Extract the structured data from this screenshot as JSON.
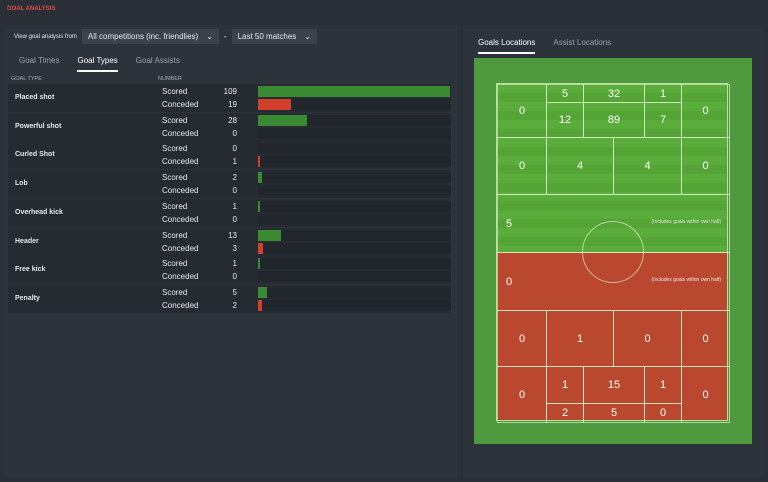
{
  "title": "GOAL ANALYSIS",
  "filters": {
    "label": "View goal analysis from",
    "competition": "All competitions (inc. friendlies)",
    "sep": "-",
    "range": "Last 50 matches"
  },
  "tabs": [
    "Goal Times",
    "Goal Types",
    "Goal Assists"
  ],
  "headers": {
    "type": "GOAL TYPE",
    "number": "NUMBER"
  },
  "rows": [
    {
      "name": "Placed shot",
      "scored": 109,
      "conceded": 19
    },
    {
      "name": "Powerful shot",
      "scored": 28,
      "conceded": 0
    },
    {
      "name": "Curled Shot",
      "scored": 0,
      "conceded": 1
    },
    {
      "name": "Lob",
      "scored": 2,
      "conceded": 0
    },
    {
      "name": "Overhead kick",
      "scored": 1,
      "conceded": 0
    },
    {
      "name": "Header",
      "scored": 13,
      "conceded": 3
    },
    {
      "name": "Free kick",
      "scored": 1,
      "conceded": 0
    },
    {
      "name": "Penalty",
      "scored": 5,
      "conceded": 2
    }
  ],
  "labels": {
    "scored": "Scored",
    "conceded": "Conceded"
  },
  "right_tabs": [
    "Goals Locations",
    "Assist Locations"
  ],
  "colors": {
    "scored": "#3a8a34",
    "conceded": "#d2402c"
  },
  "note": "(Includes goals within own half)",
  "pitch": {
    "att": [
      "0",
      "5",
      "32",
      "1",
      "0",
      "12",
      "89",
      "7",
      "0",
      "4",
      "4",
      "0",
      "5"
    ],
    "def": [
      "0",
      "0",
      "1",
      "0",
      "0",
      "0",
      "1",
      "15",
      "1",
      "0",
      "2",
      "5",
      "0"
    ]
  }
}
